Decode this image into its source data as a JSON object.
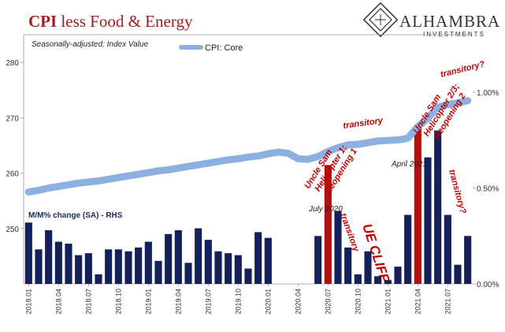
{
  "title": {
    "bold": "CPI",
    "rest": " less Food & Energy"
  },
  "logo": {
    "name": "ALHAMBRA",
    "sub": "INVESTMENTS"
  },
  "notes": {
    "seasonal": "Seasonally-adjusted; Index Value",
    "rhs_title": "M/M% change (SA) - RHS"
  },
  "colors": {
    "line": "#8cb0e0",
    "bar": "#13205a",
    "bar_highlight": "#b01010",
    "annotation": "#c00000"
  },
  "chart_data": {
    "type": "bar",
    "categories": [
      "2018.01",
      "2018.02",
      "2018.03",
      "2018.04",
      "2018.05",
      "2018.06",
      "2018.07",
      "2018.08",
      "2018.09",
      "2018.10",
      "2018.11",
      "2018.12",
      "2019.01",
      "2019.02",
      "2019.03",
      "2019.04",
      "2019.05",
      "2019.06",
      "2019.07",
      "2019.08",
      "2019.09",
      "2019.10",
      "2019.11",
      "2019.12",
      "2020.01",
      "2020.02",
      "2020.03",
      "2020.04",
      "2020.05",
      "2020.06",
      "2020.07",
      "2020.08",
      "2020.09",
      "2020.10",
      "2020.11",
      "2020.12",
      "2021.01",
      "2021.02",
      "2021.03",
      "2021.04",
      "2021.05",
      "2021.06",
      "2021.07",
      "2021.08",
      "2021.09"
    ],
    "x_tick_labels": [
      "2018.01",
      "2018.04",
      "2018.07",
      "2018.10",
      "2019.01",
      "2019.04",
      "2019.07",
      "2019.10",
      "2020.01",
      "2020.04",
      "2020.07",
      "2020.10",
      "2021.01",
      "2021.04",
      "2021.07"
    ],
    "series": [
      {
        "name": "CPI: Core",
        "type": "line",
        "axis": "left",
        "values": [
          256.6,
          256.9,
          257.3,
          257.6,
          257.9,
          258.2,
          258.4,
          258.6,
          258.9,
          259.2,
          259.5,
          259.8,
          260.1,
          260.4,
          260.6,
          260.9,
          261.2,
          261.5,
          261.8,
          262.1,
          262.4,
          262.6,
          262.9,
          263.1,
          263.5,
          263.8,
          263.6,
          262.6,
          262.5,
          263.0,
          263.9,
          264.6,
          265.1,
          265.2,
          265.5,
          265.8,
          265.9,
          266.0,
          266.3,
          268.4,
          269.9,
          271.9,
          272.4,
          272.7,
          273.1
        ],
        "ylim": [
          240,
          285
        ],
        "yticks": [
          250,
          260,
          270,
          280
        ]
      },
      {
        "name": "M/M% change (SA) - RHS",
        "type": "bar",
        "axis": "right",
        "values": [
          0.32,
          0.18,
          0.28,
          0.22,
          0.21,
          0.15,
          0.16,
          0.05,
          0.18,
          0.18,
          0.17,
          0.19,
          0.22,
          0.12,
          0.26,
          0.28,
          0.11,
          0.29,
          0.23,
          0.17,
          0.16,
          0.15,
          0.08,
          0.27,
          0.24,
          0.0,
          0.0,
          0.0,
          0.0,
          0.25,
          0.62,
          0.38,
          0.19,
          0.05,
          0.17,
          0.04,
          0.02,
          0.09,
          0.36,
          0.83,
          0.66,
          0.8,
          0.36,
          0.1,
          0.25
        ],
        "highlight_indices": [
          30,
          39
        ],
        "ylim": [
          0,
          1.3
        ],
        "yticks": [
          0,
          0.5,
          1.0
        ],
        "ytick_labels": [
          "0.00%",
          "0.50%",
          "1.00%"
        ]
      }
    ],
    "annotations": [
      {
        "text": "July 2020",
        "category": "2020.07"
      },
      {
        "text": "April 2021",
        "category": "2021.04"
      },
      {
        "text": "transitory",
        "style": "red"
      },
      {
        "text": "transitory",
        "style": "red"
      },
      {
        "text": "transitory?",
        "style": "red"
      },
      {
        "text": "transitory?",
        "style": "red"
      },
      {
        "text": "UE CLIFF",
        "style": "red-large"
      },
      {
        "lines": [
          "Uncle Sam",
          "Helicopter 1;",
          "Reopening 1"
        ],
        "style": "red"
      },
      {
        "lines": [
          "Uncle Sam",
          "Helicopter 2/3;",
          "Reopening 2"
        ],
        "style": "red"
      }
    ]
  }
}
